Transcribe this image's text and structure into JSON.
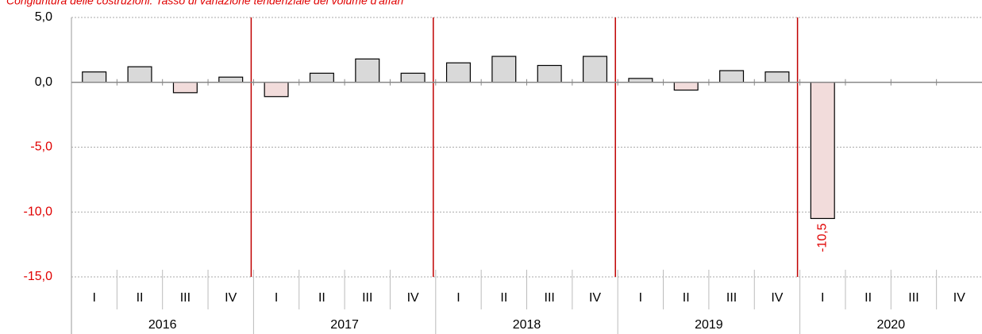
{
  "chart_data": {
    "type": "bar",
    "title": "Congiuntura delle costruzioni. Tasso di variazione tendenziale del volume d'affari",
    "categories": [
      "I",
      "II",
      "III",
      "IV",
      "I",
      "II",
      "III",
      "IV",
      "I",
      "II",
      "III",
      "IV",
      "I",
      "II",
      "III",
      "IV",
      "I",
      "II",
      "III",
      "IV"
    ],
    "category_groups": [
      "2016",
      "2017",
      "2018",
      "2019",
      "2020"
    ],
    "values": [
      0.8,
      1.2,
      -0.8,
      0.4,
      -1.1,
      0.7,
      1.8,
      0.7,
      1.5,
      2.0,
      1.3,
      2.0,
      0.3,
      -0.6,
      0.9,
      0.8,
      -10.5,
      null,
      null,
      null
    ],
    "value_labels": [
      null,
      null,
      null,
      null,
      null,
      null,
      null,
      null,
      null,
      null,
      null,
      null,
      null,
      null,
      null,
      null,
      "-10,5",
      null,
      null,
      null
    ],
    "color_positive": "#d9d9d9",
    "color_negative": "#f2dcdb",
    "ylim": [
      -15,
      5
    ],
    "yticks": [
      {
        "value": 5,
        "label": "5,0"
      },
      {
        "value": 0,
        "label": "0,0"
      },
      {
        "value": -5,
        "label": "-5,0"
      },
      {
        "value": -10,
        "label": "-10,0"
      },
      {
        "value": -15,
        "label": "-15,0"
      }
    ],
    "grid": true
  }
}
